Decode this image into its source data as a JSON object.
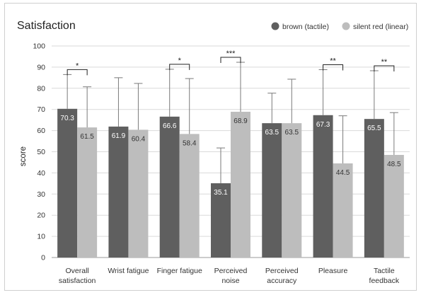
{
  "chart_data": {
    "type": "bar",
    "title": "Satisfaction",
    "ylabel": "score",
    "xlabel": "",
    "ylim": [
      0,
      100
    ],
    "yticks": [
      0,
      10,
      20,
      30,
      40,
      50,
      60,
      70,
      80,
      90,
      100
    ],
    "grid": true,
    "legend_position": "top-right",
    "categories": [
      [
        "Overall",
        "satisfaction"
      ],
      [
        "Wrist fatigue"
      ],
      [
        "Finger fatigue"
      ],
      [
        "Perceived",
        "noise"
      ],
      [
        "Perceived",
        "accuracy"
      ],
      [
        "Pleasure"
      ],
      [
        "Tactile",
        "feedback"
      ]
    ],
    "series": [
      {
        "name": "brown (tactile)",
        "color": "#5f5f5f",
        "values": [
          70.3,
          61.9,
          66.6,
          35.1,
          63.5,
          67.3,
          65.5
        ],
        "error_upper": [
          86.5,
          85.0,
          89.0,
          51.8,
          77.7,
          88.8,
          88.3
        ]
      },
      {
        "name": "silent red (linear)",
        "color": "#bdbdbd",
        "values": [
          61.5,
          60.4,
          58.4,
          68.9,
          63.5,
          44.5,
          48.5
        ],
        "error_upper": [
          80.7,
          82.3,
          84.6,
          92.3,
          84.3,
          67.0,
          68.5
        ]
      }
    ],
    "significance": [
      "*",
      "",
      "*",
      "***",
      "",
      "**",
      "**"
    ]
  }
}
